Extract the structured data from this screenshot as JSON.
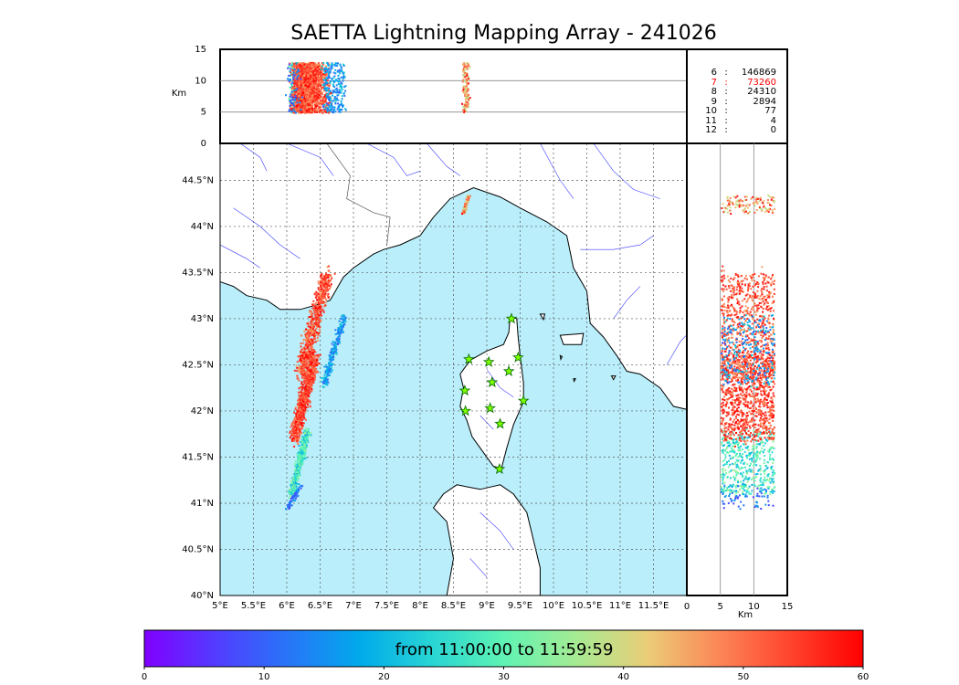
{
  "title": "SAETTA Lightning Mapping Array - 241026",
  "colorbar": {
    "label": "from 11:00:00 to 11:59:59",
    "min": 0,
    "max": 60,
    "ticks": [
      "0",
      "10",
      "20",
      "30",
      "40",
      "50",
      "60"
    ]
  },
  "altitude_axis": {
    "unit_label": "Km",
    "ticks": [
      "0",
      "5",
      "10",
      "15"
    ],
    "range_km": [
      0,
      15
    ]
  },
  "map": {
    "lon_range": [
      5.0,
      12.0
    ],
    "lat_range": [
      40.0,
      44.9
    ],
    "lon_ticks": [
      "5°E",
      "5.5°E",
      "6°E",
      "6.5°E",
      "7°E",
      "7.5°E",
      "8°E",
      "8.5°E",
      "9°E",
      "9.5°E",
      "10°E",
      "10.5°E",
      "11°E",
      "11.5°E"
    ],
    "lat_ticks": [
      "40°N",
      "40.5°N",
      "41°N",
      "41.5°N",
      "42°N",
      "42.5°N",
      "43°N",
      "43.5°N",
      "44°N",
      "44.5°N"
    ],
    "sea_color": "#b9eefa",
    "land_color": "#ffffff",
    "river_color": "#3c3cff",
    "station_color": "#7dff00",
    "stations": [
      {
        "lon": 9.37,
        "lat": 43.0
      },
      {
        "lon": 8.73,
        "lat": 42.56
      },
      {
        "lon": 9.03,
        "lat": 42.53
      },
      {
        "lon": 9.47,
        "lat": 42.58
      },
      {
        "lon": 9.33,
        "lat": 42.43
      },
      {
        "lon": 9.08,
        "lat": 42.31
      },
      {
        "lon": 8.67,
        "lat": 42.22
      },
      {
        "lon": 9.55,
        "lat": 42.11
      },
      {
        "lon": 8.68,
        "lat": 42.0
      },
      {
        "lon": 9.05,
        "lat": 42.03
      },
      {
        "lon": 9.2,
        "lat": 41.86
      },
      {
        "lon": 9.19,
        "lat": 41.37
      }
    ]
  },
  "source_counts": [
    {
      "level": "6",
      "count": "146869",
      "color": "#000000"
    },
    {
      "level": "7",
      "count": "73260",
      "color": "#ff0000"
    },
    {
      "level": "8",
      "count": "24310",
      "color": "#000000"
    },
    {
      "level": "9",
      "count": "2894",
      "color": "#000000"
    },
    {
      "level": "10",
      "count": "77",
      "color": "#000000"
    },
    {
      "level": "11",
      "count": "4",
      "color": "#000000"
    },
    {
      "level": "12",
      "count": "0",
      "color": "#000000"
    }
  ]
}
